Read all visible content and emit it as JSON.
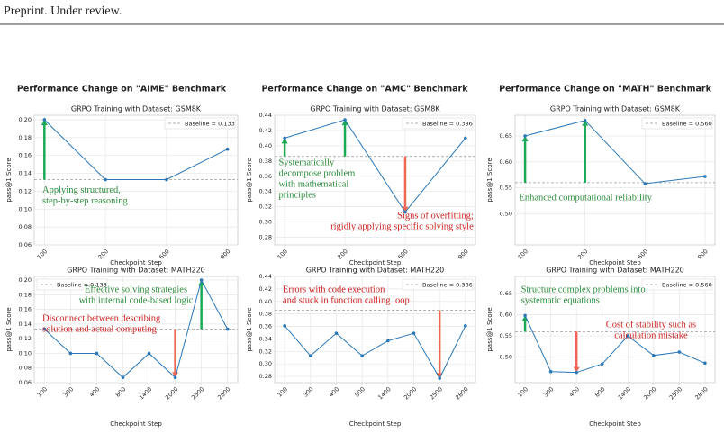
{
  "header": "Preprint. Under review.",
  "column_titles": [
    "Performance Change on \"AIME\" Benchmark",
    "Performance Change on \"AMC\" Benchmark",
    "Performance Change on \"MATH\" Benchmark"
  ],
  "chart_data": [
    {
      "type": "line",
      "title": "GRPO Training with Dataset: GSM8K",
      "xlabel": "Checkpoint Step",
      "ylabel": "pass@1 Score",
      "categories": [
        "100",
        "200",
        "600",
        "900"
      ],
      "values": [
        0.2,
        0.133,
        0.133,
        0.167
      ],
      "color": "#2a78b8",
      "ylim": [
        0.06,
        0.205
      ],
      "yticks": [
        0.06,
        0.08,
        {
          "value": 0.1,
          "label": "0.10"
        },
        0.12,
        0.14,
        0.16,
        0.18,
        {
          "value": 0.2,
          "label": "0.20"
        }
      ],
      "grid": true,
      "legend": "upper right",
      "baseline": {
        "value": 0.133,
        "label": "Baseline = 0.133",
        "color": "#999999"
      },
      "annotations": [
        {
          "lines": [
            "Applying structured,",
            "step-by-step reasoning"
          ],
          "color": "#2e8b3e",
          "arrow_color": "#1aaa55",
          "arrows": [
            0
          ]
        }
      ]
    },
    {
      "type": "line",
      "title": "GRPO Training with Dataset: GSM8K",
      "xlabel": "Checkpoint Step",
      "ylabel": "pass@1 Score",
      "categories": [
        "100",
        "200",
        "600",
        "900"
      ],
      "values": [
        0.41,
        0.434,
        0.313,
        0.41
      ],
      "color": "#2a78b8",
      "ylim": [
        0.27,
        0.44
      ],
      "yticks": [
        0.28,
        {
          "value": 0.3,
          "label": "0.30"
        },
        0.32,
        0.34,
        0.36,
        0.38,
        {
          "value": 0.4,
          "label": "0.40"
        },
        0.42,
        0.44
      ],
      "grid": true,
      "legend": "upper right",
      "baseline": {
        "value": 0.386,
        "label": "Baseline = 0.386",
        "color": "#999999"
      },
      "annotations": [
        {
          "lines": [
            "Systematically",
            "decompose problem",
            "with mathematical",
            "principles"
          ],
          "color": "#2e8b3e",
          "arrow_color": "#1aaa55",
          "arrows": [
            0,
            1
          ]
        },
        {
          "lines": [
            "Signs of overfitting;",
            "rigidly applying specific solving style"
          ],
          "color": "#cc2222",
          "arrow_color": "#ee6655",
          "arrows": [
            2
          ]
        }
      ]
    },
    {
      "type": "line",
      "title": "GRPO Training with Dataset: GSM8K",
      "xlabel": "Checkpoint Step",
      "ylabel": "pass@1 Score",
      "categories": [
        "100",
        "200",
        "600",
        "900"
      ],
      "values": [
        0.65,
        0.68,
        0.558,
        0.572
      ],
      "color": "#2a78b8",
      "ylim": [
        0.44,
        0.69
      ],
      "yticks": [
        {
          "value": 0.5,
          "label": "0.50"
        },
        0.55,
        {
          "value": 0.6,
          "label": "0.60"
        },
        0.65
      ],
      "grid": true,
      "legend": "upper right",
      "baseline": {
        "value": 0.56,
        "label": "Baseline = 0.560",
        "color": "#999999"
      },
      "annotations": [
        {
          "lines": [
            "Enhanced computational reliability"
          ],
          "color": "#2e8b3e",
          "arrow_color": "#1aaa55",
          "arrows": [
            0,
            1
          ]
        }
      ]
    },
    {
      "type": "line",
      "title": "GRPO Training with Dataset: MATH220",
      "xlabel": "Checkpoint Step",
      "ylabel": "pass@1 Score",
      "categories": [
        "100",
        "300",
        "400",
        "800",
        "1400",
        "2000",
        "2500",
        "2800"
      ],
      "values": [
        0.133,
        0.1,
        0.1,
        0.067,
        0.1,
        0.067,
        0.2,
        0.133
      ],
      "color": "#2a78b8",
      "ylim": [
        0.06,
        0.205
      ],
      "yticks": [
        0.06,
        0.08,
        {
          "value": 0.1,
          "label": "0.10"
        },
        0.12,
        0.14,
        0.16,
        0.18,
        {
          "value": 0.2,
          "label": "0.20"
        }
      ],
      "grid": true,
      "legend": "upper left",
      "baseline": {
        "value": 0.133,
        "label": "Baseline = 0.133",
        "color": "#999999"
      },
      "annotations": [
        {
          "lines": [
            "Effective solving strategies",
            "with internal code-based logic"
          ],
          "color": "#2e8b3e",
          "arrow_color": "#1aaa55",
          "arrows": [
            6
          ]
        },
        {
          "lines": [
            "Disconnect between describing",
            "solution and actual computing"
          ],
          "color": "#cc2222",
          "arrow_color": "#ee6655",
          "arrows": [
            5
          ]
        }
      ]
    },
    {
      "type": "line",
      "title": "GRPO Training with Dataset: MATH220",
      "xlabel": "Checkpoint Step",
      "ylabel": "pass@1 Score",
      "categories": [
        "100",
        "300",
        "400",
        "800",
        "1400",
        "2000",
        "2500",
        "2800"
      ],
      "values": [
        0.361,
        0.313,
        0.349,
        0.313,
        0.337,
        0.349,
        0.277,
        0.361
      ],
      "color": "#2a78b8",
      "ylim": [
        0.27,
        0.44
      ],
      "yticks": [
        0.28,
        {
          "value": 0.3,
          "label": "0.30"
        },
        0.32,
        0.34,
        0.36,
        0.38,
        {
          "value": 0.4,
          "label": "0.40"
        },
        0.42,
        0.44
      ],
      "grid": true,
      "legend": "upper right",
      "baseline": {
        "value": 0.386,
        "label": "Baseline = 0.386",
        "color": "#999999"
      },
      "annotations": [
        {
          "lines": [
            "Errors with code execution",
            "and stuck in function calling loop"
          ],
          "color": "#cc2222",
          "arrow_color": "#ee6655",
          "arrows": [
            6
          ]
        }
      ]
    },
    {
      "type": "line",
      "title": "GRPO Training with Dataset: MATH220",
      "xlabel": "Checkpoint Step",
      "ylabel": "pass@1 Score",
      "categories": [
        "100",
        "300",
        "400",
        "800",
        "1400",
        "2000",
        "2500",
        "2800"
      ],
      "values": [
        0.598,
        0.466,
        0.464,
        0.484,
        0.55,
        0.504,
        0.512,
        0.486
      ],
      "color": "#2a78b8",
      "ylim": [
        0.44,
        0.69
      ],
      "yticks": [
        {
          "value": 0.5,
          "label": "0.50"
        },
        0.55,
        {
          "value": 0.6,
          "label": "0.60"
        },
        0.65
      ],
      "grid": true,
      "legend": "upper right",
      "baseline": {
        "value": 0.56,
        "label": "Baseline = 0.560",
        "color": "#999999"
      },
      "annotations": [
        {
          "lines": [
            "Structure complex problems into",
            "systematic equations"
          ],
          "color": "#2e8b3e",
          "arrow_color": "#1aaa55",
          "arrows": [
            0
          ]
        },
        {
          "lines": [
            "Cost of stability such as",
            "calculation mistake"
          ],
          "color": "#cc2222",
          "arrow_color": "#ee6655",
          "arrows": [
            2
          ]
        }
      ]
    }
  ]
}
